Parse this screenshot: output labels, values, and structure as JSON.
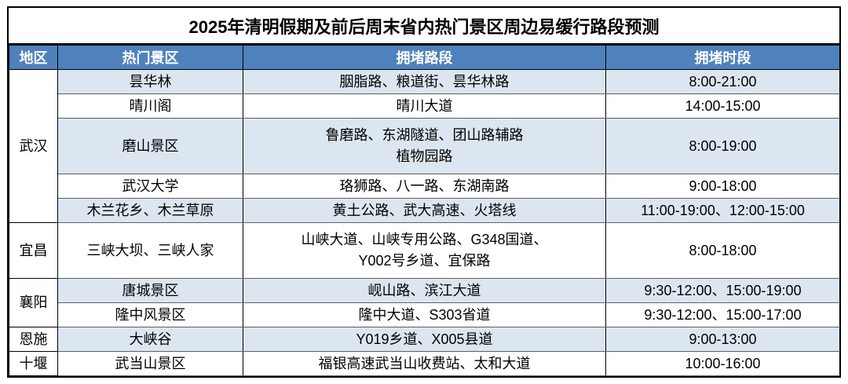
{
  "title": "2025年清明假期及前后周末省内热门景区周边易缓行路段预测",
  "table": {
    "headers": [
      "地区",
      "热门景区",
      "拥堵路段",
      "拥堵时段"
    ],
    "regions": [
      {
        "name": "武汉",
        "rows": [
          {
            "spot": "昙华林",
            "roads": [
              "胭脂路、粮道街、昙华林路"
            ],
            "time": "8:00-21:00",
            "shade": true
          },
          {
            "spot": "晴川阁",
            "roads": [
              "晴川大道"
            ],
            "time": "14:00-15:00",
            "shade": false
          },
          {
            "spot": "磨山景区",
            "roads": [
              "鲁磨路、东湖隧道、团山路辅路",
              "植物园路"
            ],
            "time": "8:00-19:00",
            "shade": true
          },
          {
            "spot": "武汉大学",
            "roads": [
              "珞狮路、八一路、东湖南路"
            ],
            "time": "9:00-18:00",
            "shade": false
          },
          {
            "spot": "木兰花乡、木兰草原",
            "roads": [
              "黄土公路、武大高速、火塔线"
            ],
            "time": "11:00-19:00、12:00-15:00",
            "shade": true
          }
        ]
      },
      {
        "name": "宜昌",
        "rows": [
          {
            "spot": "三峡大坝、三峡人家",
            "roads": [
              "山峡大道、山峡专用公路、G348国道、",
              "Y002号乡道、宜保路"
            ],
            "time": "8:00-18:00",
            "shade": false
          }
        ]
      },
      {
        "name": "襄阳",
        "rows": [
          {
            "spot": "唐城景区",
            "roads": [
              "岘山路、滨江大道"
            ],
            "time": "9:30-12:00、15:00-19:00",
            "shade": true
          },
          {
            "spot": "隆中风景区",
            "roads": [
              "隆中大道、S303省道"
            ],
            "time": "9:30-12:00、15:00-17:00",
            "shade": false
          }
        ]
      },
      {
        "name": "恩施",
        "rows": [
          {
            "spot": "大峡谷",
            "roads": [
              "Y019乡道、X005县道"
            ],
            "time": "9:00-13:00",
            "shade": true
          }
        ]
      },
      {
        "name": "十堰",
        "rows": [
          {
            "spot": "武当山景区",
            "roads": [
              "福银高速武当山收费站、太和大道"
            ],
            "time": "10:00-16:00",
            "shade": false
          }
        ]
      }
    ]
  },
  "colors": {
    "header_bg": "#4F81BD",
    "header_text": "#FFFFFF",
    "row_shade": "#DCE6F1",
    "row_plain": "#FFFFFF",
    "border": "#000000"
  }
}
